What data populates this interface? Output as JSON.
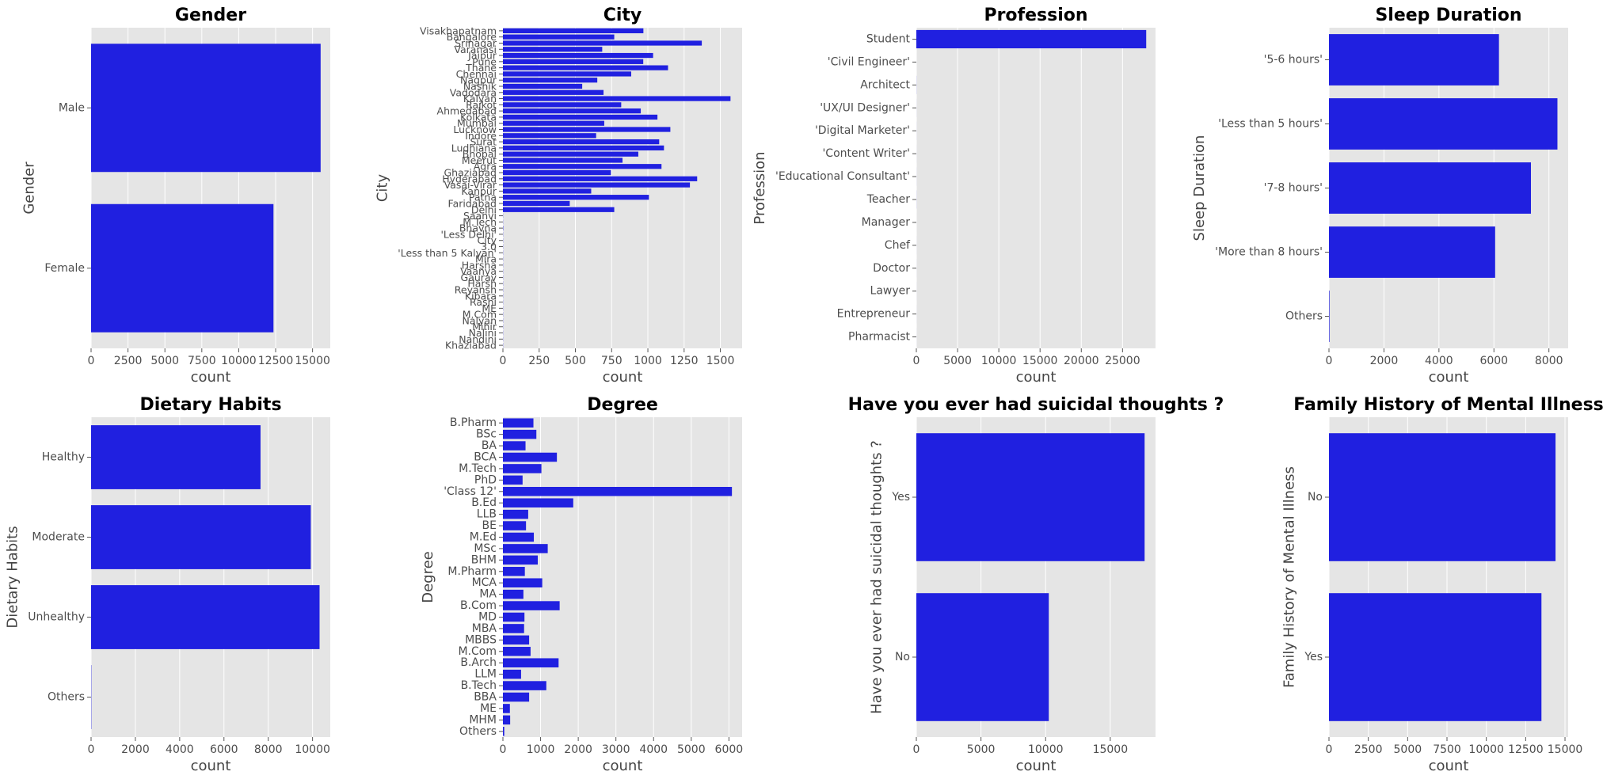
{
  "chart_data": [
    {
      "type": "bar",
      "orientation": "horizontal",
      "title": "Gender",
      "xlabel": "count",
      "ylabel": "Gender",
      "xlim": [
        0,
        16200
      ],
      "xticks": [
        0,
        2500,
        5000,
        7500,
        10000,
        12500,
        15000
      ],
      "categories": [
        "Male",
        "Female"
      ],
      "values": [
        15547,
        12354
      ],
      "color": "#2020e0",
      "grid": true
    },
    {
      "type": "bar",
      "orientation": "horizontal",
      "title": "City",
      "xlabel": "count",
      "ylabel": "City",
      "xlim": [
        0,
        1650
      ],
      "xticks": [
        0,
        250,
        500,
        750,
        1000,
        1250,
        1500
      ],
      "categories": [
        "Visakhapatnam",
        "Bangalore",
        "Srinagar",
        "Varanasi",
        "Jaipur",
        "Pune",
        "Thane",
        "Chennai",
        "Nagpur",
        "Nashik",
        "Vadodara",
        "Kalyan",
        "Rajkot",
        "Ahmedabad",
        "Kolkata",
        "Mumbai",
        "Lucknow",
        "Indore",
        "Surat",
        "Ludhiana",
        "Bhopal",
        "Meerut",
        "Agra",
        "Ghaziabad",
        "Hyderabad",
        "Vasai-Virar",
        "Kanpur",
        "Patna",
        "Faridabad",
        "Delhi",
        "Saanvi",
        "M.Tech",
        "Bhavna",
        "'Less Delhi'",
        "City",
        "3.0",
        "'Less than 5 Kalyan'",
        "Mira",
        "Harsha",
        "Vaanya",
        "Gaurav",
        "Harsh",
        "Reyansh",
        "Kibara",
        "Rashi",
        "ME",
        "M.Com",
        "Nalyan",
        "Mihir",
        "Nalini",
        "Nandini",
        "Khaziabad"
      ],
      "values": [
        969,
        768,
        1372,
        685,
        1036,
        968,
        1139,
        885,
        651,
        547,
        694,
        1570,
        816,
        951,
        1066,
        699,
        1155,
        643,
        1078,
        1111,
        934,
        825,
        1094,
        745,
        1340,
        1290,
        609,
        1007,
        461,
        768,
        1,
        1,
        2,
        1,
        1,
        1,
        1,
        1,
        1,
        1,
        1,
        1,
        1,
        1,
        1,
        1,
        1,
        1,
        1,
        1,
        1,
        1
      ],
      "color": "#2020e0",
      "grid": true
    },
    {
      "type": "bar",
      "orientation": "horizontal",
      "title": "Profession",
      "xlabel": "count",
      "ylabel": "Profession",
      "xlim": [
        0,
        29000
      ],
      "xticks": [
        0,
        5000,
        10000,
        15000,
        20000,
        25000
      ],
      "categories": [
        "Student",
        "'Civil Engineer'",
        "Architect",
        "'UX/UI Designer'",
        "'Digital Marketer'",
        "'Content Writer'",
        "'Educational Consultant'",
        "Teacher",
        "Manager",
        "Chef",
        "Doctor",
        "Lawyer",
        "Entrepreneur",
        "Pharmacist"
      ],
      "values": [
        27870,
        1,
        8,
        3,
        3,
        2,
        3,
        6,
        1,
        2,
        2,
        2,
        2,
        2
      ],
      "color": "#2020e0",
      "grid": true
    },
    {
      "type": "bar",
      "orientation": "horizontal",
      "title": "Sleep Duration",
      "xlabel": "count",
      "ylabel": "Sleep Duration",
      "xlim": [
        0,
        8700
      ],
      "xticks": [
        0,
        2000,
        4000,
        6000,
        8000
      ],
      "categories": [
        "'5-6 hours'",
        "'Less than 5 hours'",
        "'7-8 hours'",
        "'More than 8 hours'",
        "Others"
      ],
      "values": [
        6183,
        8310,
        7346,
        6044,
        18
      ],
      "color": "#2020e0",
      "grid": true
    },
    {
      "type": "bar",
      "orientation": "horizontal",
      "title": "Dietary Habits",
      "xlabel": "count",
      "ylabel": "Dietary Habits",
      "xlim": [
        0,
        10800
      ],
      "xticks": [
        0,
        2000,
        4000,
        6000,
        8000,
        10000
      ],
      "categories": [
        "Healthy",
        "Moderate",
        "Unhealthy",
        "Others"
      ],
      "values": [
        7651,
        9921,
        10317,
        12
      ],
      "color": "#2020e0",
      "grid": true
    },
    {
      "type": "bar",
      "orientation": "horizontal",
      "title": "Degree",
      "xlabel": "count",
      "ylabel": "Degree",
      "xlim": [
        0,
        6350
      ],
      "xticks": [
        0,
        1000,
        2000,
        3000,
        4000,
        5000,
        6000
      ],
      "categories": [
        "B.Pharm",
        "BSc",
        "BA",
        "BCA",
        "M.Tech",
        "PhD",
        "'Class 12'",
        "B.Ed",
        "LLB",
        "BE",
        "M.Ed",
        "MSc",
        "BHM",
        "M.Pharm",
        "MCA",
        "MA",
        "B.Com",
        "MD",
        "MBA",
        "MBBS",
        "M.Com",
        "B.Arch",
        "LLM",
        "B.Tech",
        "BBA",
        "ME",
        "MHM",
        "Others"
      ],
      "values": [
        810,
        888,
        600,
        1433,
        1022,
        522,
        6080,
        1867,
        671,
        613,
        821,
        1190,
        925,
        582,
        1044,
        544,
        1506,
        572,
        562,
        696,
        734,
        1478,
        482,
        1152,
        696,
        185,
        192,
        35
      ],
      "color": "#2020e0",
      "grid": true
    },
    {
      "type": "bar",
      "orientation": "horizontal",
      "title": "Have you ever had suicidal thoughts ?",
      "xlabel": "count",
      "ylabel": "Have you ever had suicidal thoughts ?",
      "xlim": [
        0,
        18500
      ],
      "xticks": [
        0,
        5000,
        10000,
        15000
      ],
      "categories": [
        "Yes",
        "No"
      ],
      "values": [
        17656,
        10245
      ],
      "color": "#2020e0",
      "grid": true
    },
    {
      "type": "bar",
      "orientation": "horizontal",
      "title": "Family History of Mental Illness",
      "xlabel": "count",
      "ylabel": "Family History of Mental Illness",
      "xlim": [
        0,
        15200
      ],
      "xticks": [
        0,
        2500,
        5000,
        7500,
        10000,
        12500,
        15000
      ],
      "categories": [
        "No",
        "Yes"
      ],
      "values": [
        14398,
        13503
      ],
      "color": "#2020e0",
      "grid": true
    }
  ]
}
